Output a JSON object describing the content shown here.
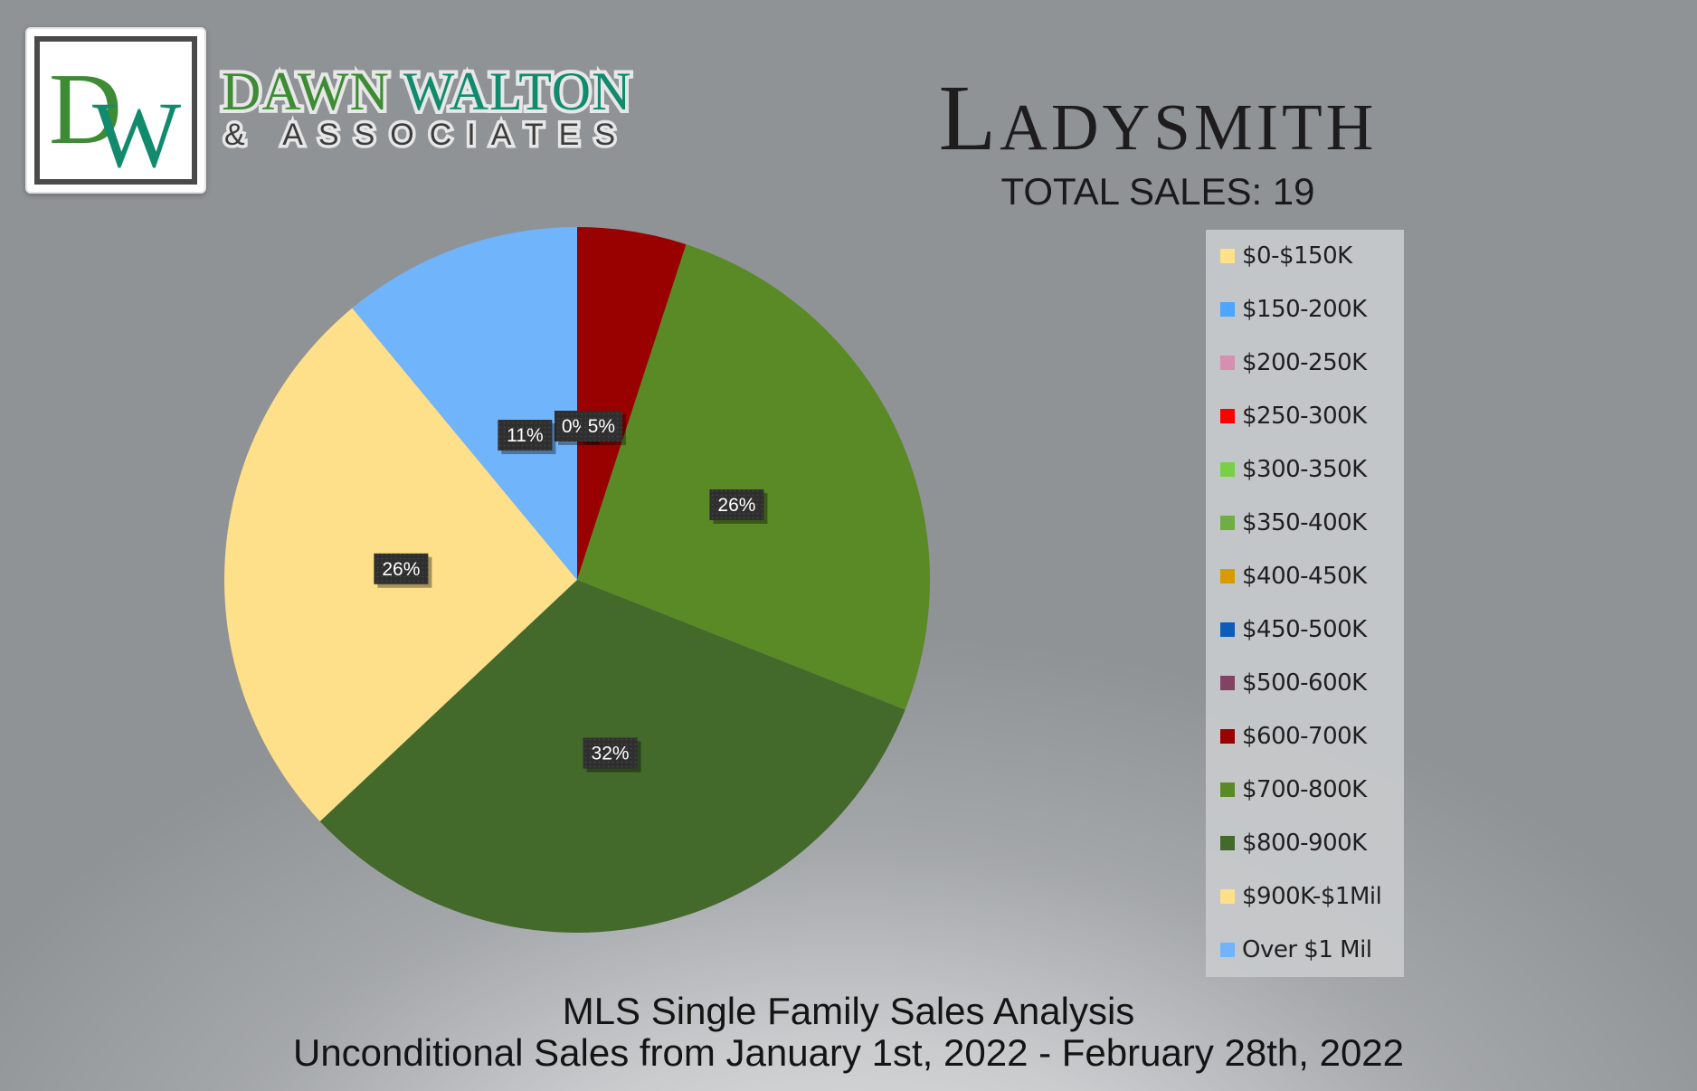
{
  "brand": {
    "logo_monogram": "DW",
    "name_first": "DAWN",
    "name_last": "WALTON",
    "subtitle": "& ASSOCIATES"
  },
  "header": {
    "city": "Ladysmith",
    "total_sales": "TOTAL SALES: 19"
  },
  "colors": {
    "logo_green": "#3d8b33",
    "logo_teal": "#128a6e"
  },
  "chart_data": {
    "type": "pie",
    "title": "",
    "slices": [
      {
        "label": "$0-$150K",
        "percent": 0,
        "color": "#fee28a",
        "data_label": ""
      },
      {
        "label": "$150-200K",
        "percent": 0,
        "color": "#4ea5fd",
        "data_label": ""
      },
      {
        "label": "$200-250K",
        "percent": 0,
        "color": "#d58fb1",
        "data_label": ""
      },
      {
        "label": "$250-300K",
        "percent": 0,
        "color": "#ff0000",
        "data_label": ""
      },
      {
        "label": "$300-350K",
        "percent": 0,
        "color": "#77d046",
        "data_label": ""
      },
      {
        "label": "$350-400K",
        "percent": 0,
        "color": "#6fae44",
        "data_label": ""
      },
      {
        "label": "$400-450K",
        "percent": 0,
        "color": "#d99c00",
        "data_label": ""
      },
      {
        "label": "$450-500K",
        "percent": 0,
        "color": "#0d5cb8",
        "data_label": ""
      },
      {
        "label": "$500-600K",
        "percent": 0,
        "color": "#814264",
        "data_label": "0%"
      },
      {
        "label": "$600-700K",
        "percent": 5,
        "color": "#990000",
        "data_label": "5%"
      },
      {
        "label": "$700-800K",
        "percent": 26,
        "color": "#5a8a26",
        "data_label": "26%"
      },
      {
        "label": "$800-900K",
        "percent": 32,
        "color": "#43692b",
        "data_label": "32%"
      },
      {
        "label": "$900K-$1Mil",
        "percent": 26,
        "color": "#fedf8a",
        "data_label": "26%"
      },
      {
        "label": "Over $1 Mil",
        "percent": 11,
        "color": "#70b4fc",
        "data_label": "11%"
      }
    ],
    "legend_position": "right",
    "footer_title": "MLS Single Family Sales Analysis",
    "footer_subtitle": "Unconditional Sales from January 1st, 2022 - February 28th, 2022"
  }
}
